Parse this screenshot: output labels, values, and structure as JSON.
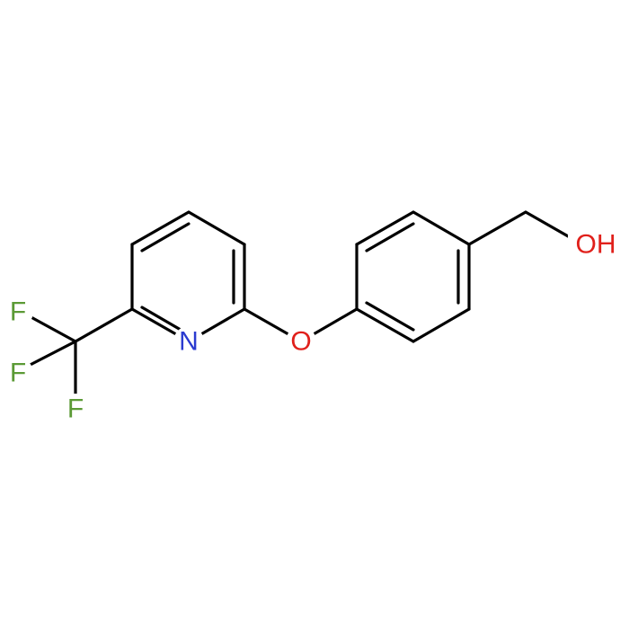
{
  "labels": [
    "F",
    "F",
    "F",
    "N",
    "O",
    "OH"
  ]
}
